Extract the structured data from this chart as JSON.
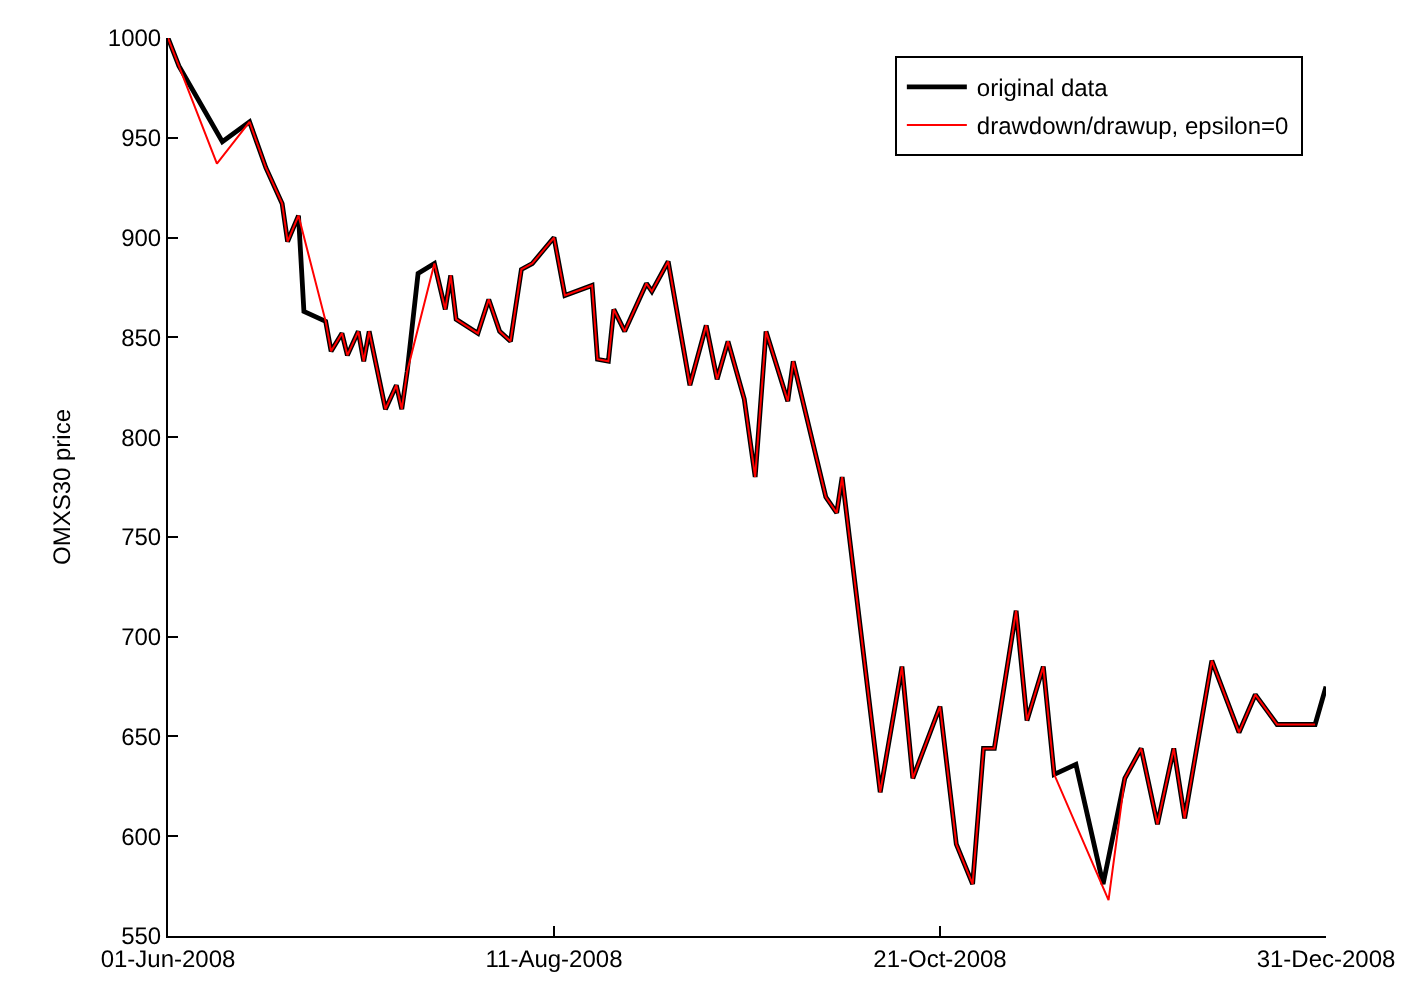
{
  "chart_data": {
    "type": "line",
    "ylabel": "OMXS30 price",
    "x": [
      "2008-06-01",
      "2008-06-03",
      "2008-06-11",
      "2008-06-16",
      "2008-06-19",
      "2008-06-22",
      "2008-06-23",
      "2008-06-25",
      "2008-06-26",
      "2008-06-30",
      "2008-07-01",
      "2008-07-03",
      "2008-07-04",
      "2008-07-06",
      "2008-07-07",
      "2008-07-08",
      "2008-07-11",
      "2008-07-13",
      "2008-07-14",
      "2008-07-15",
      "2008-07-17",
      "2008-07-20",
      "2008-07-22",
      "2008-07-23",
      "2008-07-24",
      "2008-07-28",
      "2008-07-30",
      "2008-08-01",
      "2008-08-03",
      "2008-08-05",
      "2008-08-07",
      "2008-08-11",
      "2008-08-13",
      "2008-08-18",
      "2008-08-19",
      "2008-08-21",
      "2008-08-22",
      "2008-08-24",
      "2008-08-28",
      "2008-08-29",
      "2008-09-01",
      "2008-09-05",
      "2008-09-08",
      "2008-09-10",
      "2008-09-12",
      "2008-09-15",
      "2008-09-17",
      "2008-09-19",
      "2008-09-23",
      "2008-09-24",
      "2008-09-30",
      "2008-10-02",
      "2008-10-03",
      "2008-10-10",
      "2008-10-14",
      "2008-10-16",
      "2008-10-21",
      "2008-10-24",
      "2008-10-27",
      "2008-10-29",
      "2008-10-31",
      "2008-11-04",
      "2008-11-06",
      "2008-11-09",
      "2008-11-11",
      "2008-11-15",
      "2008-11-20",
      "2008-11-24",
      "2008-11-27",
      "2008-11-30",
      "2008-12-03",
      "2008-12-05",
      "2008-12-10",
      "2008-12-15",
      "2008-12-18",
      "2008-12-22",
      "2008-12-29",
      "2008-12-31"
    ],
    "series": [
      {
        "name": "original data",
        "color": "#000000",
        "values": [
          1000,
          986,
          948,
          958,
          935,
          917,
          898,
          911,
          863,
          858,
          843,
          852,
          841,
          853,
          838,
          853,
          814,
          826,
          814,
          833,
          882,
          887,
          864,
          881,
          859,
          852,
          869,
          853,
          848,
          884,
          887,
          900,
          871,
          876,
          839,
          838,
          864,
          853,
          877,
          873,
          888,
          826,
          856,
          829,
          848,
          819,
          780,
          853,
          818,
          838,
          770,
          762,
          780,
          622,
          685,
          629,
          665,
          596,
          576,
          644,
          644,
          713,
          658,
          685,
          631,
          636,
          576,
          629,
          644,
          606,
          644,
          609,
          688,
          652,
          671,
          656,
          656,
          675
        ]
      },
      {
        "name": "drawdown/drawup, epsilon=0",
        "color": "#ff0000",
        "x": [
          "2008-06-01",
          "2008-06-03",
          "2008-06-10",
          "2008-06-16",
          "2008-06-19",
          "2008-06-22",
          "2008-06-23",
          "2008-06-25",
          "2008-06-30",
          "2008-07-01",
          "2008-07-03",
          "2008-07-04",
          "2008-07-06",
          "2008-07-07",
          "2008-07-08",
          "2008-07-11",
          "2008-07-13",
          "2008-07-14",
          "2008-07-15",
          "2008-07-20",
          "2008-07-22",
          "2008-07-23",
          "2008-07-24",
          "2008-07-28",
          "2008-07-30",
          "2008-08-01",
          "2008-08-03",
          "2008-08-05",
          "2008-08-07",
          "2008-08-11",
          "2008-08-13",
          "2008-08-18",
          "2008-08-19",
          "2008-08-21",
          "2008-08-22",
          "2008-08-24",
          "2008-08-28",
          "2008-08-29",
          "2008-09-01",
          "2008-09-05",
          "2008-09-08",
          "2008-09-10",
          "2008-09-12",
          "2008-09-15",
          "2008-09-17",
          "2008-09-19",
          "2008-09-23",
          "2008-09-24",
          "2008-09-30",
          "2008-10-02",
          "2008-10-03",
          "2008-10-10",
          "2008-10-14",
          "2008-10-16",
          "2008-10-21",
          "2008-10-24",
          "2008-10-27",
          "2008-10-29",
          "2008-10-31",
          "2008-11-04",
          "2008-11-06",
          "2008-11-09",
          "2008-11-11",
          "2008-11-21",
          "2008-11-24",
          "2008-11-27",
          "2008-11-30",
          "2008-12-03",
          "2008-12-05",
          "2008-12-10",
          "2008-12-15",
          "2008-12-18",
          "2008-12-22",
          "2008-12-29"
        ],
        "values": [
          1000,
          986,
          937,
          958,
          935,
          917,
          898,
          911,
          858,
          843,
          852,
          841,
          853,
          838,
          853,
          814,
          826,
          814,
          833,
          887,
          864,
          881,
          859,
          852,
          869,
          853,
          848,
          884,
          887,
          900,
          871,
          876,
          839,
          838,
          864,
          853,
          877,
          873,
          888,
          826,
          856,
          829,
          848,
          819,
          780,
          853,
          818,
          838,
          770,
          762,
          780,
          622,
          685,
          629,
          665,
          596,
          576,
          644,
          644,
          713,
          658,
          685,
          631,
          568,
          629,
          644,
          606,
          644,
          609,
          688,
          652,
          671,
          656,
          656
        ]
      }
    ],
    "xlim": [
      "2008-06-01",
      "2008-12-31"
    ],
    "xticks": [
      {
        "value": "2008-06-01",
        "label": "01-Jun-2008"
      },
      {
        "value": "2008-08-11",
        "label": "11-Aug-2008"
      },
      {
        "value": "2008-10-21",
        "label": "21-Oct-2008"
      },
      {
        "value": "2008-12-31",
        "label": "31-Dec-2008"
      }
    ],
    "ylim": [
      550,
      1000
    ],
    "yticks": [
      550,
      600,
      650,
      700,
      750,
      800,
      850,
      900,
      950,
      1000
    ],
    "legend": "top right",
    "marker": "none",
    "line_style": "solid"
  }
}
